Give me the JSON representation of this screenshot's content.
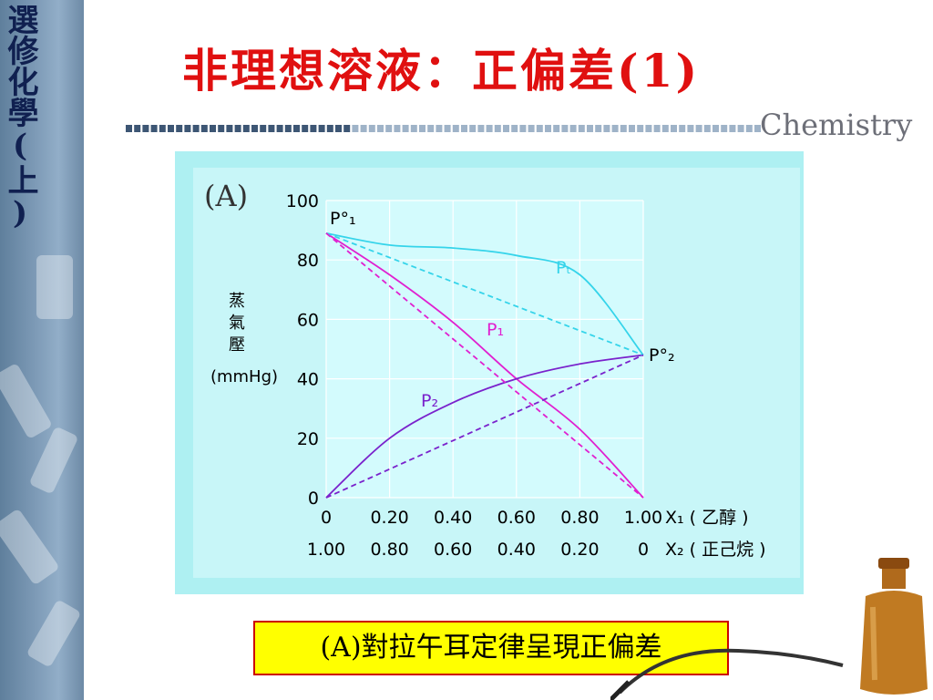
{
  "sidebar": {
    "text": "選修化學(上)"
  },
  "slide": {
    "title": "非理想溶液：正偏差(1)",
    "brand": "Chemistry"
  },
  "caption": {
    "text": "(A)對拉午耳定律呈現正偏差"
  },
  "colors": {
    "title": "#e01010",
    "pt": "#35d4ea",
    "p1": "#e020d0",
    "p2": "#7a22cc",
    "panel": "#aef0f2",
    "plot": "#d3fbfd"
  },
  "chart_data": {
    "type": "line",
    "panel_label": "(A)",
    "ylabel_chars": [
      "蒸",
      "氣",
      "壓"
    ],
    "ylabel_unit": "(mmHg)",
    "ylim": [
      0,
      100
    ],
    "yticks": [
      "0",
      "20",
      "40",
      "60",
      "80",
      "100"
    ],
    "x": [
      0,
      0.2,
      0.4,
      0.6,
      0.8,
      1.0
    ],
    "xticks_top": [
      "0",
      "0.20",
      "0.40",
      "0.60",
      "0.80",
      "1.00"
    ],
    "xticks_bottom": [
      "1.00",
      "0.80",
      "0.60",
      "0.40",
      "0.20",
      "0"
    ],
    "x_top_label": "X₁ ( 乙醇 )",
    "x_bottom_label": "X₂ ( 正己烷 )",
    "grid": true,
    "endpoint_labels": {
      "p1_pure": "P°₁",
      "p2_pure": "P°₂"
    },
    "series": [
      {
        "name": "Pₜ",
        "color": "#35d4ea",
        "style": "solid",
        "values": [
          89,
          85,
          84,
          81.5,
          75,
          48
        ]
      },
      {
        "name": "P₁",
        "color": "#e020d0",
        "style": "solid",
        "values": [
          89,
          75,
          59,
          40,
          23,
          0
        ]
      },
      {
        "name": "P₂",
        "color": "#7a22cc",
        "style": "solid",
        "values": [
          0,
          20,
          32,
          40,
          45,
          48
        ]
      },
      {
        "name": "",
        "color": "#35d4ea",
        "style": "dashed",
        "values": [
          89,
          80.8,
          72.6,
          64.4,
          56.2,
          48
        ]
      },
      {
        "name": "",
        "color": "#e020d0",
        "style": "dashed",
        "values": [
          89,
          71.2,
          53.4,
          35.6,
          17.8,
          0
        ]
      },
      {
        "name": "",
        "color": "#7a22cc",
        "style": "dashed",
        "values": [
          0,
          9.6,
          19.2,
          28.8,
          38.4,
          48
        ]
      }
    ]
  }
}
